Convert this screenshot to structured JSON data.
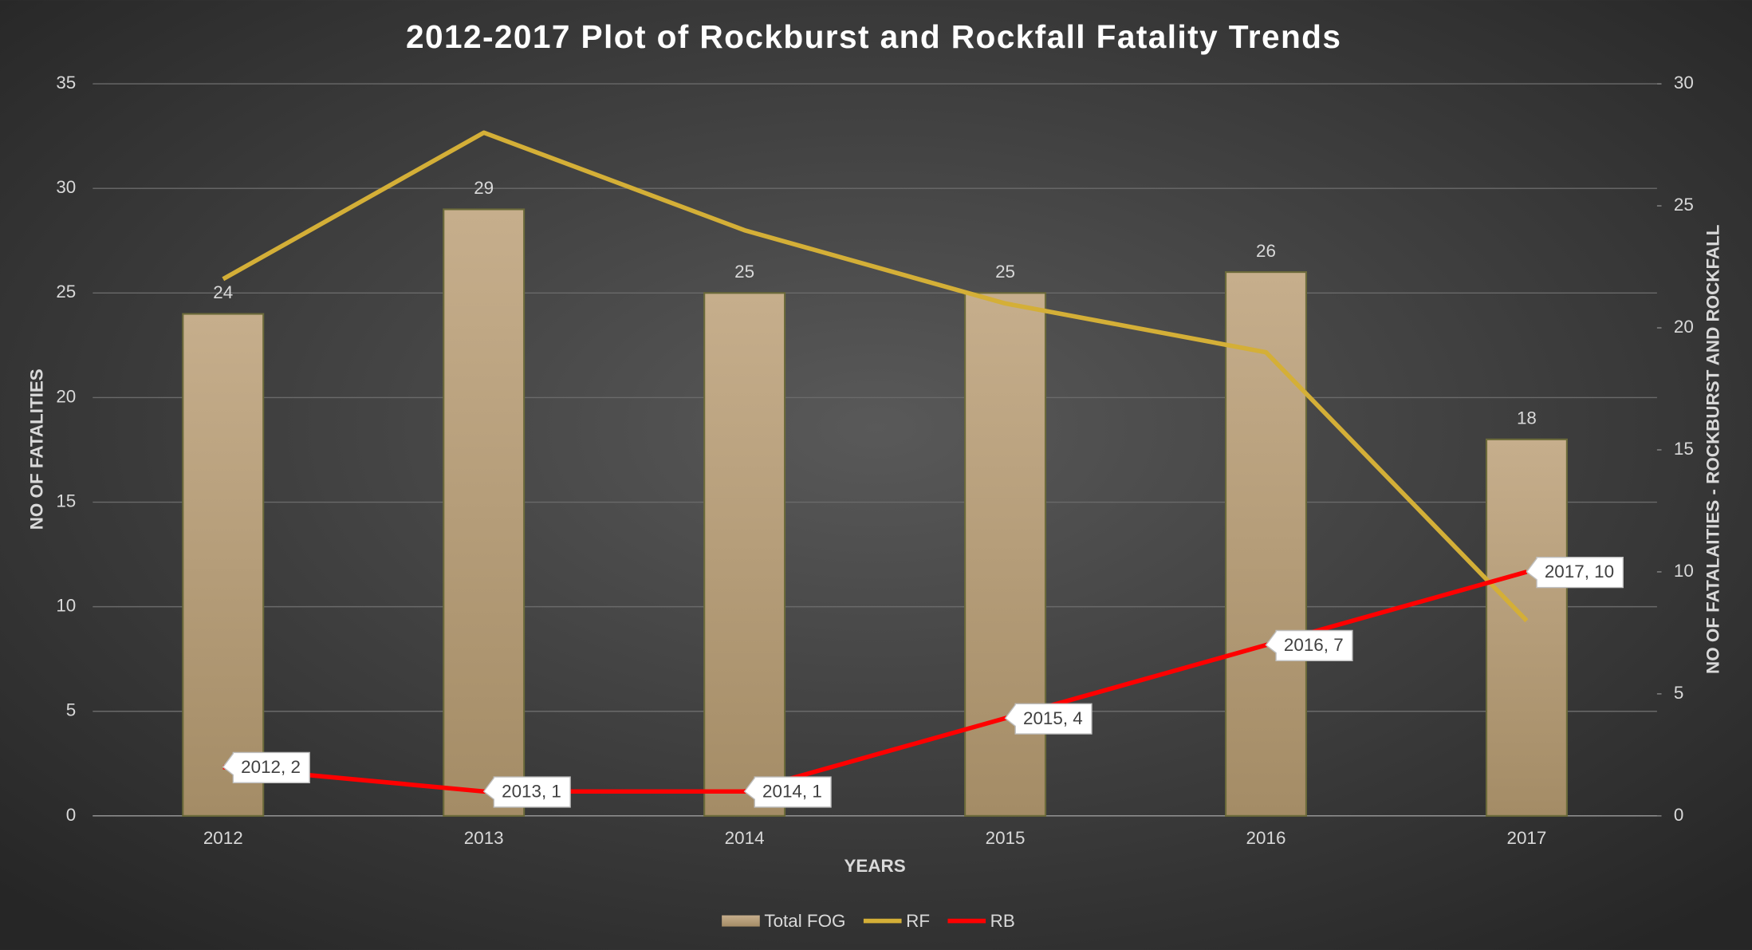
{
  "chart_data": {
    "type": "bar_line",
    "title": "2012-2017 Plot of Rockburst and Rockfall Fatality Trends",
    "x_label": "YEARS",
    "y_label": "NO OF FATALITIES",
    "y2_label": "NO OF FATALAITIES - ROCKBURST AND ROCKFALL",
    "categories": [
      "2012",
      "2013",
      "2014",
      "2015",
      "2016",
      "2017"
    ],
    "ylim": [
      0,
      35
    ],
    "yticks": [
      0,
      5,
      10,
      15,
      20,
      25,
      30,
      35
    ],
    "y2lim": [
      0,
      30
    ],
    "y2ticks": [
      0,
      5,
      10,
      15,
      20,
      25,
      30
    ],
    "grid": true,
    "legend": "bottom",
    "series": [
      {
        "name": "Total FOG",
        "type": "bar",
        "color": "#b8a07a",
        "values": [
          24,
          29,
          25,
          25,
          26,
          18
        ]
      },
      {
        "name": "RF",
        "type": "line",
        "axis": "y2",
        "color": "#d4af37",
        "values": [
          22,
          28,
          24,
          21,
          19,
          8
        ]
      },
      {
        "name": "RB",
        "type": "line",
        "axis": "y2",
        "color": "#ff0000",
        "values": [
          2,
          1,
          1,
          4,
          7,
          10
        ],
        "value_labels": [
          "2012, 2",
          "2013, 1",
          "2014, 1",
          "2015, 4",
          "2016, 7",
          "2017, 10"
        ]
      }
    ]
  }
}
